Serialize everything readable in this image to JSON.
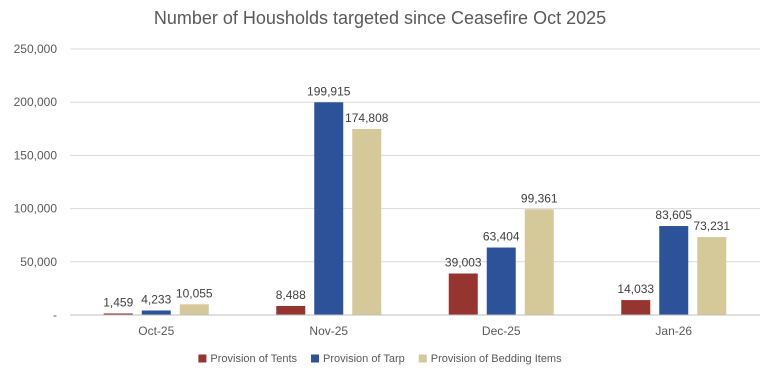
{
  "chart_data": {
    "type": "bar",
    "title": "Number of Housholds targeted since Ceasefire Oct 2025",
    "xlabel": "",
    "ylabel": "",
    "categories": [
      "Oct-25",
      "Nov-25",
      "Dec-25",
      "Jan-26"
    ],
    "ylim": [
      0,
      250000
    ],
    "y_ticks": [
      0,
      50000,
      100000,
      150000,
      200000,
      250000
    ],
    "y_tick_labels": [
      "-",
      "50,000",
      "100,000",
      "150,000",
      "200,000",
      "250,000"
    ],
    "grid": true,
    "legend_position": "bottom",
    "series": [
      {
        "name": "Provision of Tents",
        "color": "#963430",
        "values": [
          1459,
          8488,
          39003,
          14033
        ],
        "labels": [
          "1,459",
          "8,488",
          "39,003",
          "14,033"
        ]
      },
      {
        "name": "Provision of Tarp",
        "color": "#2c5399",
        "values": [
          4233,
          199915,
          63404,
          83605
        ],
        "labels": [
          "4,233",
          "199,915",
          "63,404",
          "83,605"
        ]
      },
      {
        "name": "Provision of Bedding Items",
        "color": "#d6c999",
        "values": [
          10055,
          174808,
          99361,
          73231
        ],
        "labels": [
          "10,055",
          "174,808",
          "99,361",
          "73,231"
        ]
      }
    ]
  }
}
